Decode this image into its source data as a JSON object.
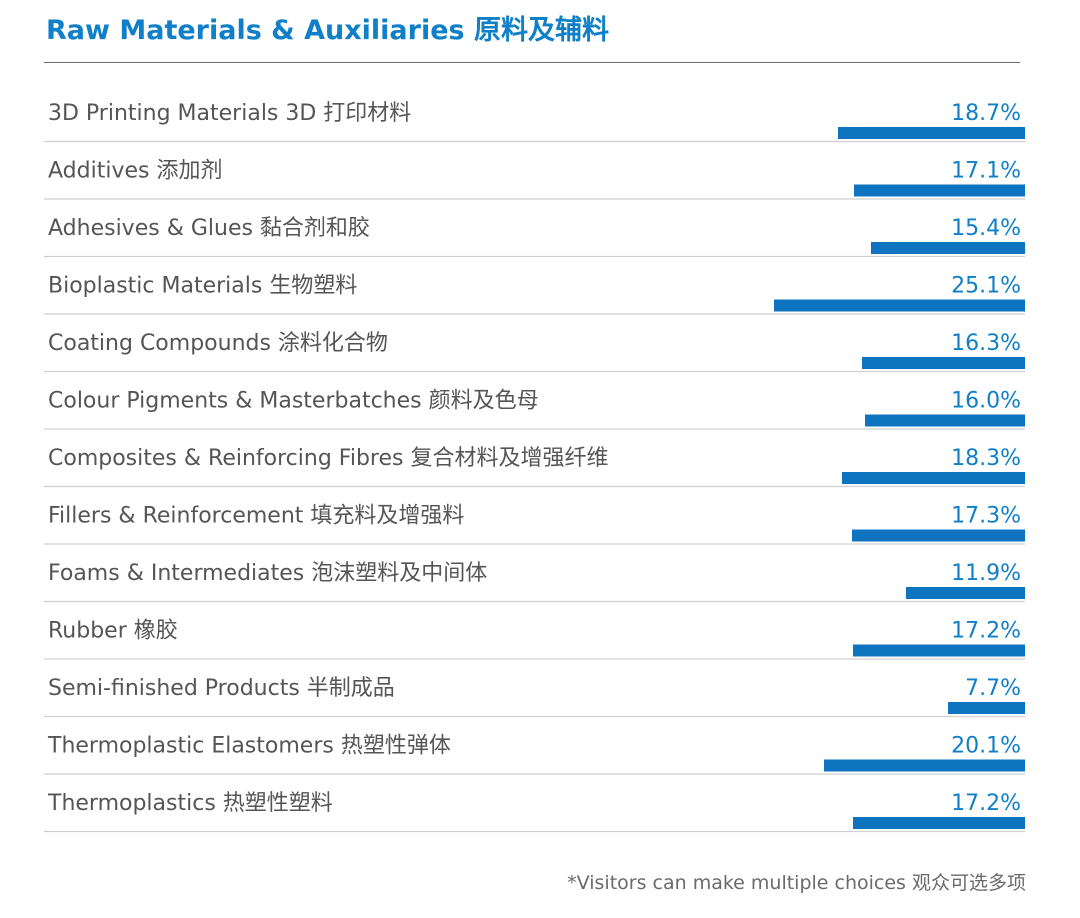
{
  "title": "Raw Materials & Auxiliaries 原料及辅料",
  "footnote": "*Visitors can make multiple choices 观众可选多项",
  "colors": {
    "accent": "#0f7fc8",
    "bar": "#0f74c0",
    "text": "#555555",
    "rule": "#cfcfcf"
  },
  "chart_data": {
    "type": "bar",
    "orientation": "horizontal",
    "categories": [
      "3D Printing Materials 3D 打印材料",
      "Additives 添加剂",
      "Adhesives & Glues 黏合剂和胶",
      "Bioplastic Materials 生物塑料",
      "Coating Compounds 涂料化合物",
      "Colour Pigments & Masterbatches 颜料及色母",
      "Composites & Reinforcing Fibres 复合材料及增强纤维",
      "Fillers & Reinforcement 填充料及增强料",
      "Foams & Intermediates 泡沫塑料及中间体",
      "Rubber 橡胶",
      "Semi-finished Products 半制成品",
      "Thermoplastic Elastomers 热塑性弹体",
      "Thermoplastics 热塑性塑料"
    ],
    "values": [
      18.7,
      17.1,
      15.4,
      25.1,
      16.3,
      16.0,
      18.3,
      17.3,
      11.9,
      17.2,
      7.7,
      20.1,
      17.2
    ],
    "value_labels": [
      "18.7%",
      "17.1%",
      "15.4%",
      "25.1%",
      "16.3%",
      "16.0%",
      "18.3%",
      "17.3%",
      "11.9%",
      "17.2%",
      "7.7%",
      "20.1%",
      "17.2%"
    ],
    "unit": "%",
    "grid": false,
    "legend": "none"
  }
}
